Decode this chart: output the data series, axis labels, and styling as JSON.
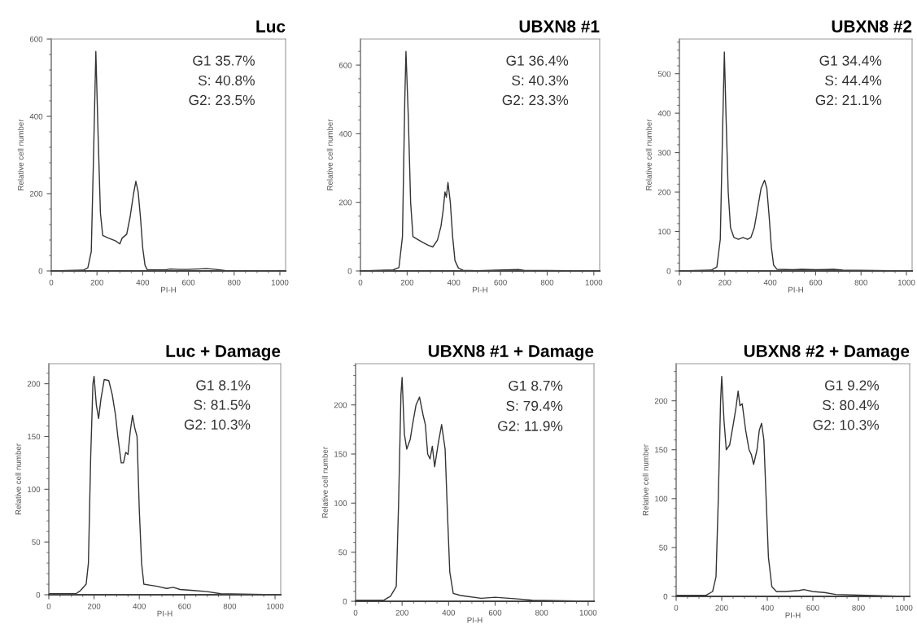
{
  "chart_data": [
    {
      "type": "line",
      "title": "Luc",
      "xlabel": "PI-H",
      "ylabel": "Relative cell number",
      "xlim": [
        0,
        1025
      ],
      "xticks": [
        0,
        200,
        400,
        600,
        800,
        1000
      ],
      "ylim": [
        0,
        600
      ],
      "yticks": [
        0,
        200,
        400,
        600
      ],
      "marker": "none",
      "annotations": [
        "G1 35.7%",
        "S: 40.8%",
        "G2: 23.5%"
      ],
      "series": [
        {
          "color": "#333333",
          "x": [
            0,
            140,
            160,
            175,
            185,
            195,
            205,
            215,
            225,
            250,
            280,
            300,
            310,
            330,
            345,
            360,
            370,
            380,
            390,
            400,
            410,
            420,
            500,
            520,
            560,
            600,
            680,
            720,
            760,
            1000
          ],
          "values": [
            0,
            2,
            8,
            50,
            300,
            568,
            350,
            150,
            92,
            85,
            78,
            70,
            85,
            95,
            140,
            200,
            232,
            205,
            140,
            60,
            15,
            3,
            3,
            5,
            4,
            4,
            6,
            4,
            1,
            0
          ]
        }
      ]
    },
    {
      "type": "line",
      "title": "UBXN8 #1",
      "xlabel": "PI-H",
      "ylabel": "Relative cell number",
      "xlim": [
        0,
        1025
      ],
      "xticks": [
        0,
        200,
        400,
        600,
        800,
        1000
      ],
      "ylim": [
        0,
        676
      ],
      "yticks": [
        0,
        200,
        400,
        600
      ],
      "marker": "none",
      "annotations": [
        "G1 36.4%",
        "S: 40.3%",
        "G2: 23.3%"
      ],
      "series": [
        {
          "color": "#333333",
          "x": [
            0,
            140,
            165,
            180,
            190,
            195,
            205,
            215,
            225,
            250,
            270,
            290,
            310,
            330,
            345,
            355,
            362,
            368,
            375,
            385,
            395,
            405,
            420,
            440,
            500,
            680,
            700,
            1000
          ],
          "values": [
            0,
            3,
            10,
            100,
            500,
            640,
            450,
            200,
            100,
            90,
            82,
            75,
            70,
            90,
            130,
            180,
            230,
            215,
            258,
            200,
            100,
            30,
            8,
            2,
            1,
            4,
            2,
            0
          ]
        }
      ]
    },
    {
      "type": "line",
      "title": "UBXN8 #2",
      "xlabel": "PI-H",
      "ylabel": "Relative cell number",
      "xlim": [
        0,
        1025
      ],
      "xticks": [
        0,
        200,
        400,
        600,
        800,
        1000
      ],
      "ylim": [
        0,
        588
      ],
      "yticks": [
        0,
        100,
        200,
        300,
        400,
        500
      ],
      "marker": "none",
      "annotations": [
        "G1 34.4%",
        "S: 44.4%",
        "G2: 21.1%"
      ],
      "series": [
        {
          "color": "#333333",
          "x": [
            0,
            140,
            165,
            180,
            190,
            198,
            205,
            215,
            225,
            240,
            260,
            280,
            300,
            315,
            330,
            345,
            360,
            375,
            385,
            395,
            405,
            415,
            430,
            500,
            540,
            600,
            680,
            720,
            1000
          ],
          "values": [
            0,
            2,
            10,
            80,
            350,
            555,
            400,
            200,
            110,
            85,
            80,
            85,
            80,
            85,
            110,
            160,
            210,
            230,
            210,
            140,
            60,
            15,
            4,
            3,
            4,
            3,
            4,
            2,
            0
          ]
        }
      ]
    },
    {
      "type": "line",
      "title": "Luc + Damage",
      "xlabel": "PI-H",
      "ylabel": "Relative cell number",
      "xlim": [
        0,
        1025
      ],
      "xticks": [
        0,
        200,
        400,
        600,
        800,
        1000
      ],
      "ylim": [
        0,
        219
      ],
      "yticks": [
        0,
        50,
        100,
        150,
        200
      ],
      "marker": "none",
      "annotations": [
        "G1 8.1%",
        "S: 81.5%",
        "G2: 10.3%"
      ],
      "series": [
        {
          "color": "#333333",
          "x": [
            0,
            120,
            140,
            165,
            175,
            185,
            195,
            200,
            210,
            220,
            230,
            245,
            265,
            280,
            295,
            305,
            320,
            330,
            340,
            350,
            360,
            370,
            380,
            390,
            400,
            410,
            420,
            450,
            480,
            520,
            550,
            580,
            640,
            700,
            760,
            1000
          ],
          "values": [
            1,
            1,
            4,
            10,
            30,
            130,
            200,
            207,
            180,
            167,
            185,
            204,
            203,
            190,
            170,
            150,
            125,
            125,
            135,
            133,
            155,
            170,
            158,
            150,
            80,
            30,
            10,
            9,
            8,
            6,
            7,
            5,
            4,
            3,
            1,
            0
          ]
        }
      ]
    },
    {
      "type": "line",
      "title": "UBXN8 #1 + Damage",
      "xlabel": "PI-H",
      "ylabel": "Relative cell number",
      "xlim": [
        0,
        1025
      ],
      "xticks": [
        0,
        200,
        400,
        600,
        800,
        1000
      ],
      "ylim": [
        0,
        242
      ],
      "yticks": [
        0,
        50,
        100,
        150,
        200
      ],
      "marker": "none",
      "annotations": [
        "G1 8.7%",
        "S: 79.4%",
        "G2: 11.9%"
      ],
      "series": [
        {
          "color": "#333333",
          "x": [
            0,
            120,
            150,
            175,
            185,
            195,
            200,
            210,
            220,
            235,
            245,
            260,
            275,
            290,
            300,
            310,
            320,
            330,
            340,
            355,
            370,
            385,
            395,
            405,
            420,
            450,
            480,
            540,
            600,
            720,
            760,
            1000
          ],
          "values": [
            1,
            1,
            5,
            15,
            100,
            210,
            228,
            170,
            155,
            165,
            180,
            200,
            208,
            190,
            180,
            150,
            145,
            158,
            137,
            160,
            180,
            155,
            90,
            30,
            8,
            6,
            5,
            3,
            4,
            2,
            1,
            0
          ]
        }
      ]
    },
    {
      "type": "line",
      "title": "UBXN8 #2 + Damage",
      "xlabel": "PI-H",
      "ylabel": "Relative cell number",
      "xlim": [
        0,
        1025
      ],
      "xticks": [
        0,
        200,
        400,
        600,
        800,
        1000
      ],
      "ylim": [
        0,
        238
      ],
      "yticks": [
        0,
        50,
        100,
        150,
        200
      ],
      "marker": "none",
      "annotations": [
        "G1 9.2%",
        "S: 80.4%",
        "G2: 10.3%"
      ],
      "series": [
        {
          "color": "#333333",
          "x": [
            0,
            130,
            160,
            175,
            185,
            195,
            200,
            210,
            220,
            235,
            250,
            262,
            272,
            280,
            290,
            305,
            320,
            330,
            340,
            355,
            365,
            375,
            385,
            395,
            405,
            420,
            440,
            480,
            540,
            560,
            600,
            650,
            700,
            1000
          ],
          "values": [
            1,
            1,
            5,
            20,
            100,
            200,
            225,
            180,
            150,
            155,
            175,
            192,
            210,
            195,
            197,
            170,
            150,
            145,
            135,
            150,
            170,
            177,
            160,
            100,
            40,
            10,
            5,
            5,
            6,
            7,
            5,
            4,
            2,
            0
          ]
        }
      ]
    }
  ]
}
